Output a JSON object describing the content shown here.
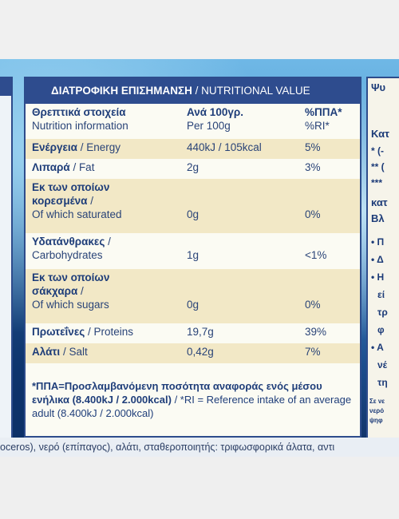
{
  "label": {
    "header_greek": "ΔΙΑΤΡΟΦΙΚΗ ΕΠΙΣΗΜΑΝΣΗ",
    "header_english": "/ NUTRITIONAL VALUE",
    "col_name_greek": "Θρεπτικά στοιχεία",
    "col_name_english": "Nutrition information",
    "col_per_greek": "Ανά 100γρ.",
    "col_per_english": "Per 100g",
    "col_ri_greek": "%ΠΠΑ*",
    "col_ri_english": "%RI*",
    "rows": [
      {
        "greek": "Ενέργεια",
        "english": "/ Energy",
        "value": "440kJ / 105kcal",
        "ri": "5%"
      },
      {
        "greek": "Λιπαρά",
        "english": "/ Fat",
        "value": "2g",
        "ri": "3%"
      },
      {
        "greek_l1": "Εκ των οποίων",
        "greek_l2": "κορεσμένα",
        "greek_l2_suffix": " /",
        "english": "Of which saturated",
        "value": "0g",
        "ri": "0%"
      },
      {
        "greek": "Υδατάνθρακες",
        "greek_suffix": " /",
        "english": "Carbohydrates",
        "value": "1g",
        "ri": "<1%"
      },
      {
        "greek_l1": "Εκ των οποίων",
        "greek_l2": "σάκχαρα",
        "greek_l2_suffix": " /",
        "english": "Of which sugars",
        "value": "0g",
        "ri": "0%"
      },
      {
        "greek": "Πρωτεΐνες",
        "english": "/ Proteins",
        "value": "19,7g",
        "ri": "39%"
      },
      {
        "greek": "Αλάτι",
        "english": "/ Salt",
        "value": "0,42g",
        "ri": "7%"
      }
    ],
    "footnote_bold": "*ΠΠΑ=Προσλαμβανόμενη ποσότητα αναφοράς ενός μέσου ενήλικα (8.400kJ / 2.000kcal)",
    "footnote_regular": "/ *RI = Reference intake of an average adult (8.400kJ / 2.000kcal)"
  },
  "ingredients_strip": "oceros), νερό (επίπαγος), αλάτι, σταθεροποιητής: τριφωσφορικά άλατα, αντι",
  "right_card_fragments": [
    "Ψυ",
    "Κατ",
    "* (-",
    "** (",
    "***",
    "κατ",
    "Βλ",
    "• Π",
    "• Δ",
    "• Η",
    "εί",
    "τρ",
    "φ",
    "• Α",
    "νέ",
    "τη",
    "Σε νε",
    "νερό",
    "ψηφ"
  ]
}
